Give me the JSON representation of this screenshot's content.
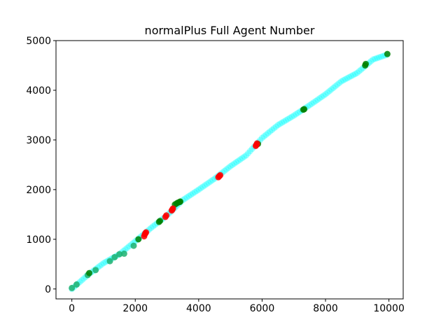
{
  "chart_data": {
    "type": "scatter",
    "title": "normalPlus Full Agent Number",
    "xlabel": "",
    "ylabel": "",
    "xlim": [
      -500,
      10450
    ],
    "ylim": [
      -200,
      5000
    ],
    "x_ticks": [
      0,
      2000,
      4000,
      6000,
      8000,
      10000
    ],
    "x_tick_labels": [
      "0",
      "2000",
      "4000",
      "6000",
      "8000",
      "10000"
    ],
    "y_ticks": [
      0,
      1000,
      2000,
      3000,
      4000,
      5000
    ],
    "y_tick_labels": [
      "0",
      "1000",
      "2000",
      "3000",
      "4000",
      "5000"
    ],
    "grid": false,
    "legend": "none",
    "colors": {
      "cyan": "#00ffff",
      "green": "#008000",
      "teal_green": "#20b070",
      "red": "#ff0000"
    },
    "trend": {
      "x": [
        0,
        500,
        1000,
        1500,
        2000,
        2500,
        3000,
        3500,
        4000,
        4500,
        5000,
        5500,
        6000,
        6500,
        7000,
        7500,
        8000,
        8500,
        9000,
        9500,
        10000
      ],
      "y": [
        0,
        280,
        520,
        700,
        960,
        1230,
        1480,
        1790,
        2000,
        2220,
        2470,
        2690,
        3040,
        3300,
        3490,
        3700,
        3920,
        4180,
        4350,
        4620,
        4730
      ]
    },
    "series": [
      {
        "color": "#20b070",
        "x": [
          0,
          150,
          500,
          750,
          1200,
          1350,
          1500,
          1650,
          1950
        ],
        "y": [
          20,
          90,
          280,
          380,
          560,
          640,
          700,
          710,
          870
        ]
      },
      {
        "color": "#008000",
        "x": [
          550,
          2100,
          2750,
          2780,
          3250,
          3300,
          3350,
          3400,
          3420,
          5870,
          7300,
          7330,
          9250,
          9270,
          9950
        ],
        "y": [
          320,
          1000,
          1350,
          1370,
          1700,
          1720,
          1740,
          1750,
          1760,
          2920,
          3610,
          3620,
          4500,
          4530,
          4730
        ]
      },
      {
        "color": "#ff0000",
        "x": [
          2280,
          2300,
          2320,
          2340,
          2950,
          2980,
          3150,
          3170,
          3190,
          4620,
          4650,
          4680,
          5800,
          5820,
          5840
        ],
        "y": [
          1060,
          1100,
          1120,
          1140,
          1450,
          1480,
          1580,
          1600,
          1620,
          2250,
          2270,
          2290,
          2880,
          2900,
          2930
        ]
      }
    ]
  }
}
